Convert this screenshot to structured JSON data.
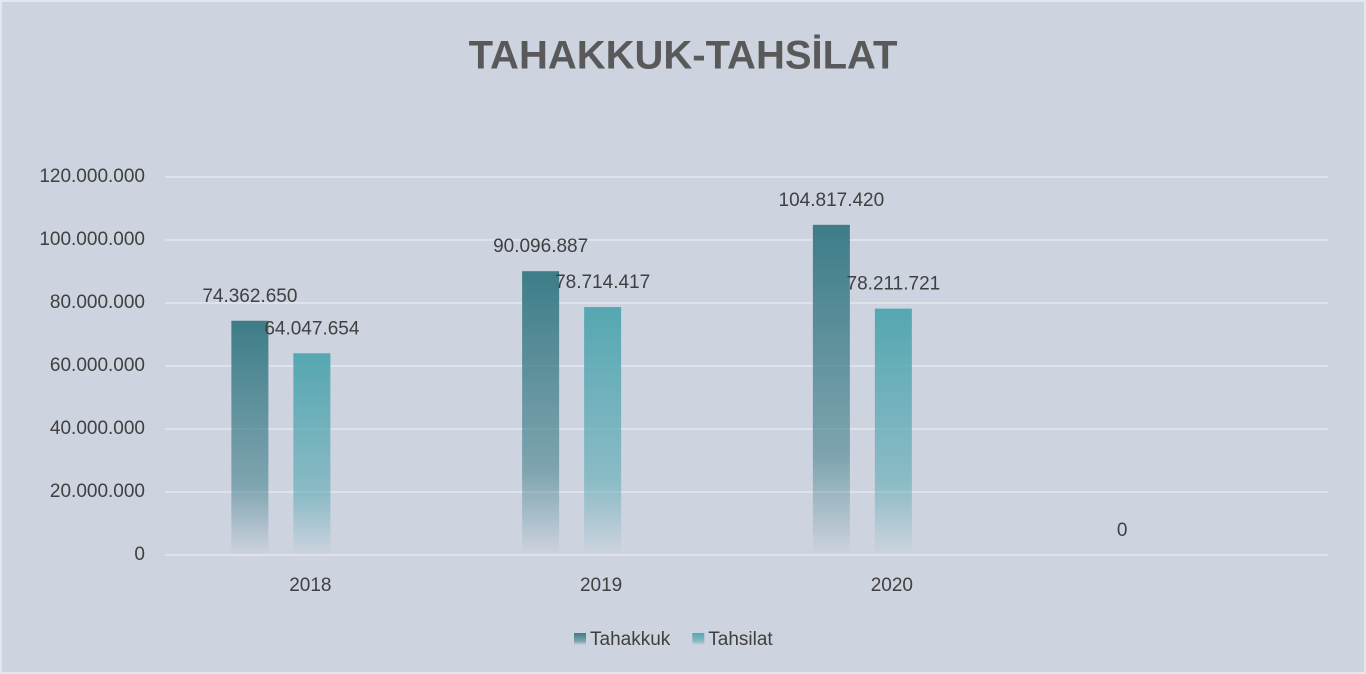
{
  "chart_data": {
    "type": "bar",
    "title": "TAHAKKUK-TAHSİLAT",
    "categories": [
      "2018",
      "2019",
      "2020",
      null
    ],
    "series": [
      {
        "name": "Tahakkuk",
        "color": "#3d7d88",
        "values": [
          74362650,
          90096887,
          104817420,
          0
        ],
        "value_labels": [
          "74.362.650",
          "90.096.887",
          "104.817.420",
          "0"
        ]
      },
      {
        "name": "Tahsilat",
        "color": "#55a7b1",
        "values": [
          64047654,
          78714417,
          78211721,
          null
        ],
        "value_labels": [
          "64.047.654",
          "78.714.417",
          "78.211.721",
          null
        ]
      }
    ],
    "ylim": [
      0,
      120000000
    ],
    "yticks": [
      0,
      {
        "value": 20000000,
        "label": "20.000.000"
      },
      {
        "value": 40000000,
        "label": "40.000.000"
      },
      {
        "value": 60000000,
        "label": "60.000.000"
      },
      {
        "value": 80000000,
        "label": "80.000.000"
      },
      {
        "value": 100000000,
        "label": "100.000.000"
      },
      {
        "value": 120000000,
        "label": "120.000.000"
      }
    ],
    "grid": true,
    "legend": "bottom"
  }
}
